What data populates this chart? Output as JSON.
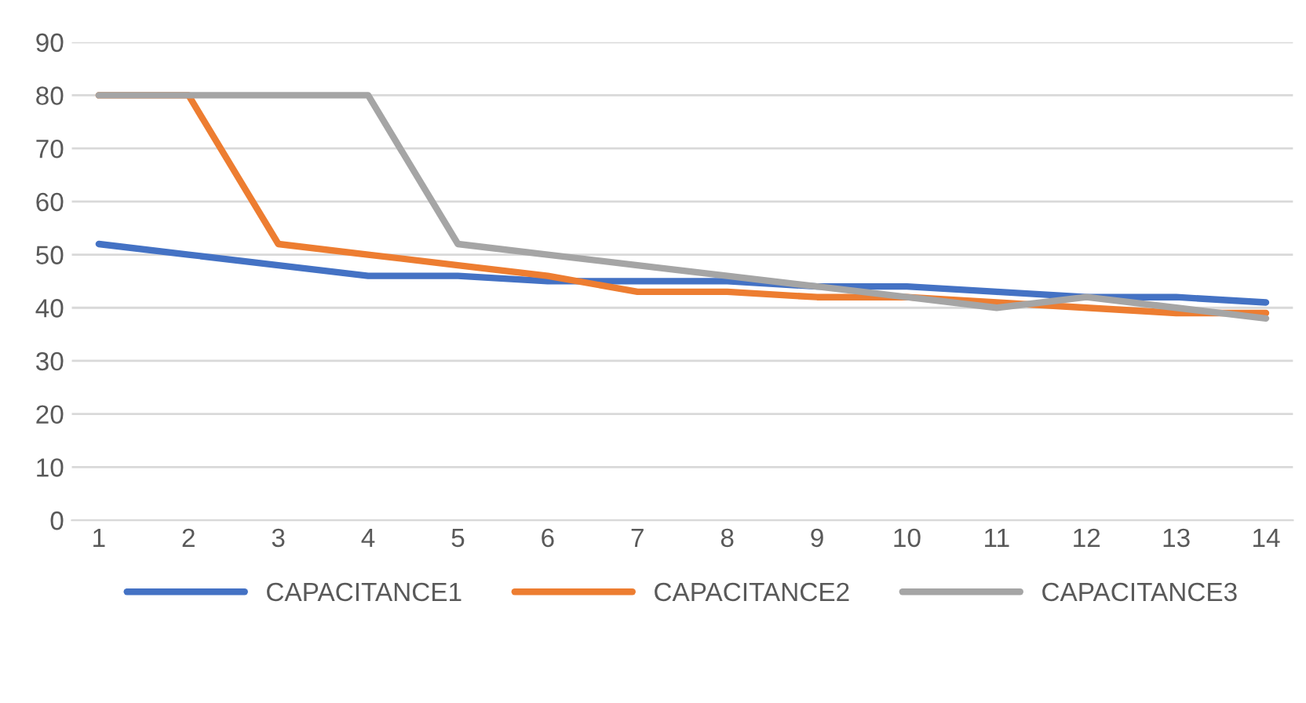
{
  "chart_data": {
    "type": "line",
    "categories": [
      "1",
      "2",
      "3",
      "4",
      "5",
      "6",
      "7",
      "8",
      "9",
      "10",
      "11",
      "12",
      "13",
      "14"
    ],
    "series": [
      {
        "name": "CAPACITANCE1",
        "color": "#4472c4",
        "values": [
          52,
          50,
          48,
          46,
          46,
          45,
          45,
          45,
          44,
          44,
          43,
          42,
          42,
          41
        ]
      },
      {
        "name": "CAPACITANCE2",
        "color": "#ed7d31",
        "values": [
          80,
          80,
          52,
          50,
          48,
          46,
          43,
          43,
          42,
          42,
          41,
          40,
          39,
          39
        ]
      },
      {
        "name": "CAPACITANCE3",
        "color": "#a5a5a5",
        "values": [
          80,
          80,
          80,
          80,
          52,
          50,
          48,
          46,
          44,
          42,
          40,
          42,
          40,
          38
        ]
      }
    ],
    "ylim": [
      0,
      90
    ],
    "yticks": [
      0,
      10,
      20,
      30,
      40,
      50,
      60,
      70,
      80,
      90
    ],
    "grid": "y",
    "legend": "bottom",
    "marker": "none",
    "line_style": "solid"
  }
}
